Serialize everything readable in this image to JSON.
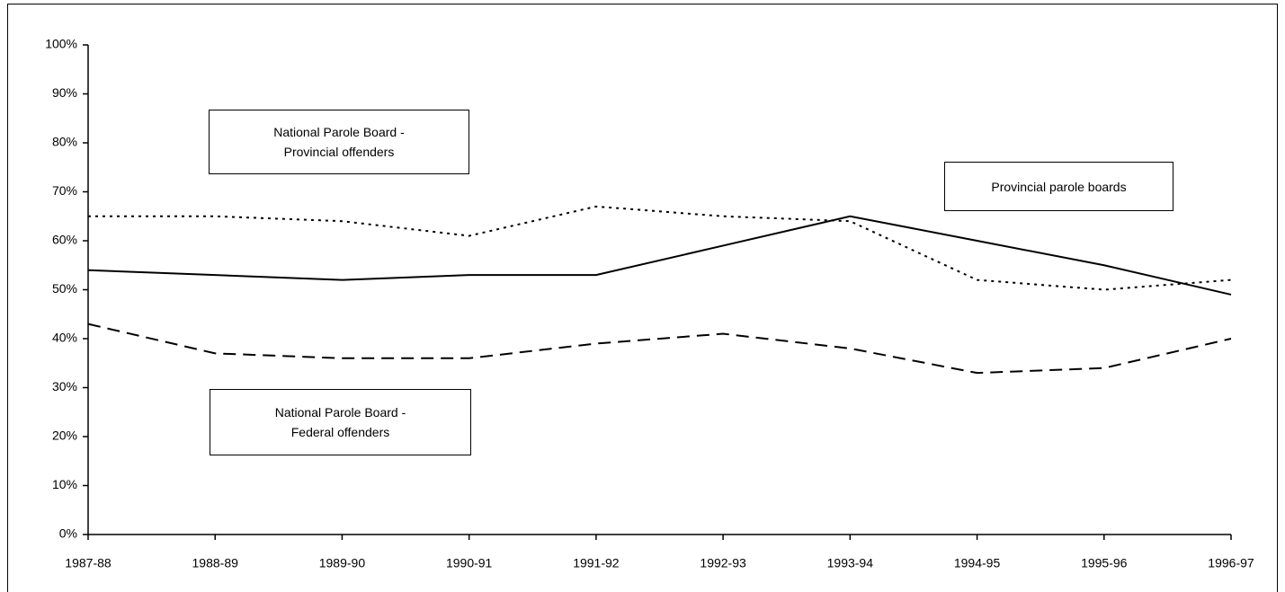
{
  "chart_data": {
    "type": "line",
    "categories": [
      "1987-88",
      "1988-89",
      "1989-90",
      "1990-91",
      "1991-92",
      "1992-93",
      "1993-94",
      "1994-95",
      "1995-96",
      "1996-97"
    ],
    "series": [
      {
        "name": "Provincial parole boards",
        "color": "#000000",
        "style": "solid",
        "values": [
          54,
          53,
          52,
          53,
          53,
          59,
          65,
          60,
          55,
          49
        ]
      },
      {
        "name": "National Parole Board - Provincial offenders",
        "color": "#000000",
        "style": "dotted",
        "values": [
          65,
          65,
          64,
          61,
          67,
          65,
          64,
          52,
          50,
          52
        ]
      },
      {
        "name": "National Parole Board - Federal offenders",
        "color": "#000000",
        "style": "dashed",
        "values": [
          43,
          37,
          36,
          36,
          39,
          41,
          38,
          33,
          34,
          40
        ]
      }
    ],
    "ylim": [
      0,
      100
    ],
    "yticks": [
      {
        "value": 0,
        "label": "0%"
      },
      {
        "value": 10,
        "label": "10%"
      },
      {
        "value": 20,
        "label": "20%"
      },
      {
        "value": 30,
        "label": "30%"
      },
      {
        "value": 40,
        "label": "40%"
      },
      {
        "value": 50,
        "label": "50%"
      },
      {
        "value": 60,
        "label": "60%"
      },
      {
        "value": 70,
        "label": "70%"
      },
      {
        "value": 80,
        "label": "80%"
      },
      {
        "value": 90,
        "label": "90%"
      },
      {
        "value": 100,
        "label": "100%"
      }
    ],
    "grid": false
  }
}
